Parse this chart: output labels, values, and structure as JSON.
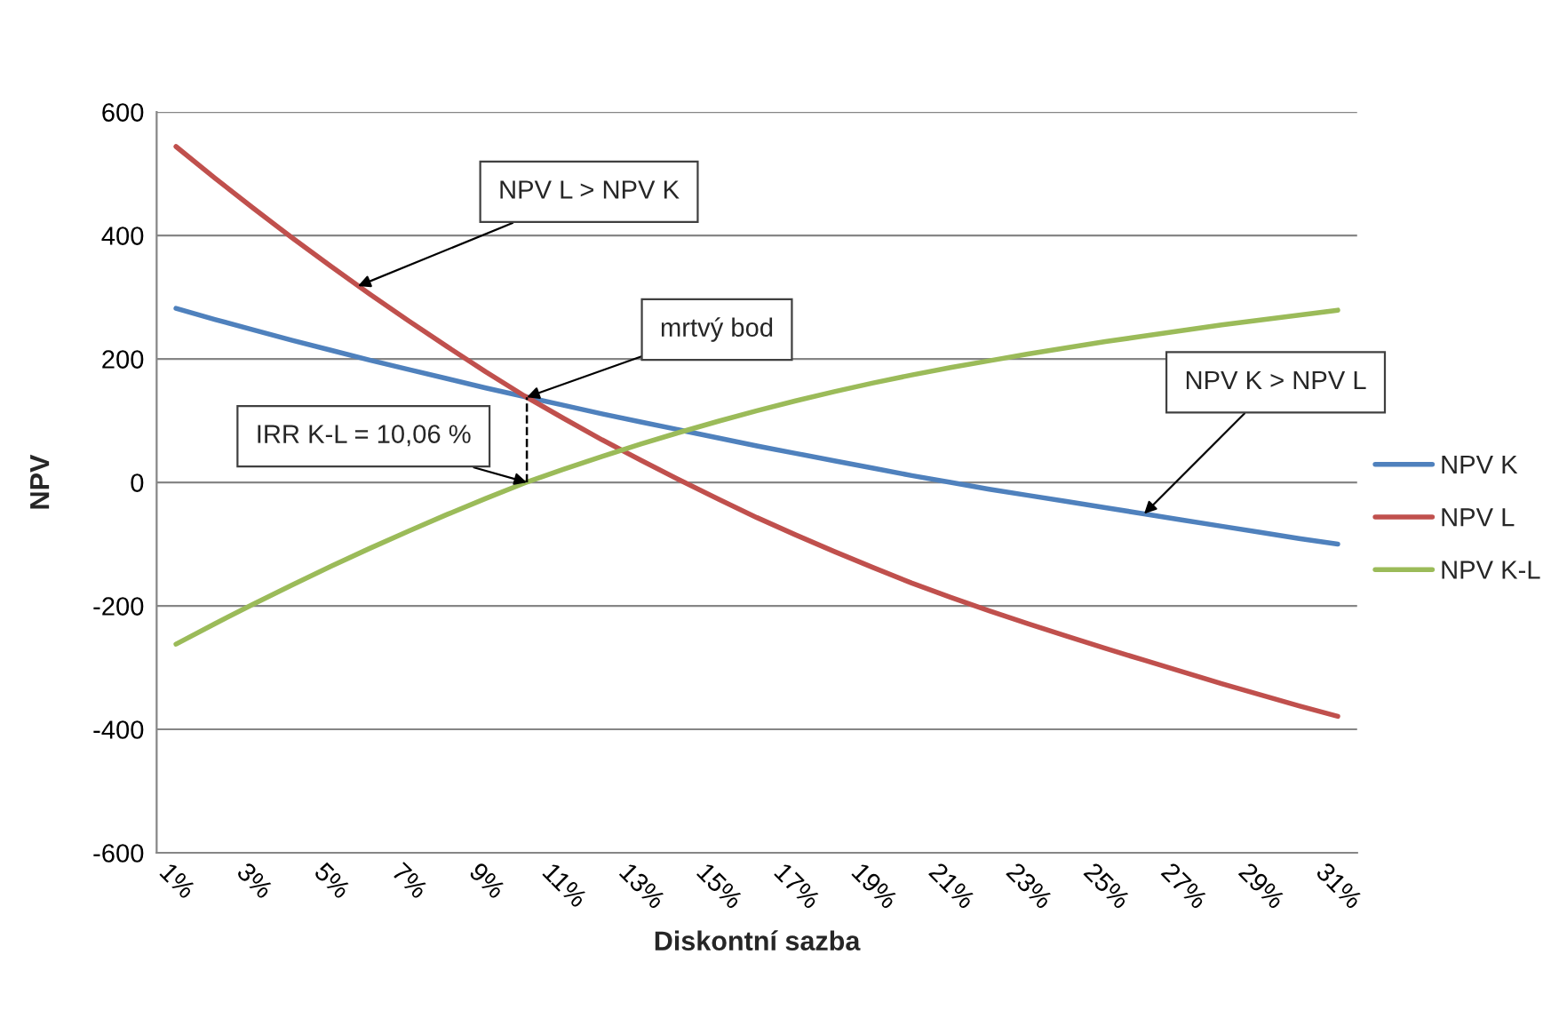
{
  "chart_data": {
    "type": "line",
    "xlabel": "Diskontní sazba",
    "ylabel": "NPV",
    "x": [
      1,
      2,
      3,
      4,
      5,
      6,
      7,
      8,
      9,
      10,
      11,
      12,
      13,
      14,
      15,
      16,
      17,
      18,
      19,
      20,
      21,
      22,
      23,
      24,
      25,
      26,
      27,
      28,
      29,
      30,
      31
    ],
    "xlim": [
      0.5,
      31.5
    ],
    "xticks": [
      {
        "value": 1,
        "label": "1%"
      },
      {
        "value": 3,
        "label": "3%"
      },
      {
        "value": 5,
        "label": "5%"
      },
      {
        "value": 7,
        "label": "7%"
      },
      {
        "value": 9,
        "label": "9%"
      },
      {
        "value": 11,
        "label": "11%"
      },
      {
        "value": 13,
        "label": "13%"
      },
      {
        "value": 15,
        "label": "15%"
      },
      {
        "value": 17,
        "label": "17%"
      },
      {
        "value": 19,
        "label": "19%"
      },
      {
        "value": 21,
        "label": "21%"
      },
      {
        "value": 23,
        "label": "23%"
      },
      {
        "value": 25,
        "label": "25%"
      },
      {
        "value": 27,
        "label": "27%"
      },
      {
        "value": 29,
        "label": "29%"
      },
      {
        "value": 31,
        "label": "31%"
      }
    ],
    "ylim": [
      -600,
      600
    ],
    "yticks": [
      -600,
      -400,
      -200,
      0,
      200,
      400,
      600
    ],
    "grid": "y",
    "legend": "right",
    "series": [
      {
        "name": "NPV K",
        "color": "#4f81bd",
        "values": [
          282,
          264,
          247,
          230,
          214,
          198,
          183,
          168,
          153,
          139,
          125,
          111,
          98,
          85,
          72,
          59,
          47,
          35,
          23,
          11,
          0,
          -11,
          -21,
          -31,
          -41,
          -51,
          -61,
          -71,
          -81,
          -91,
          -100
        ]
      },
      {
        "name": "NPV L",
        "color": "#c0504d",
        "values": [
          544,
          493,
          444,
          396,
          350,
          305,
          262,
          220,
          179,
          140,
          104,
          69,
          36,
          4,
          -27,
          -57,
          -85,
          -112,
          -138,
          -163,
          -186,
          -208,
          -229,
          -249,
          -269,
          -288,
          -307,
          -326,
          -344,
          -362,
          -379
        ]
      },
      {
        "name": "NPV K-L",
        "color": "#9bbb59",
        "values": [
          -262,
          -229,
          -197,
          -166,
          -136,
          -107,
          -79,
          -52,
          -26,
          -1,
          21,
          42,
          62,
          81,
          99,
          116,
          132,
          147,
          161,
          174,
          186,
          197,
          208,
          218,
          228,
          237,
          246,
          255,
          263,
          271,
          279
        ]
      },
      {
        "color": "#000000",
        "x": [
          10.06,
          10.06
        ],
        "values": [
          0,
          138
        ],
        "line_style": "dashed"
      }
    ],
    "annotations": [
      {
        "text": "NPV L > NPV K",
        "x": 5.7,
        "y": 318
      },
      {
        "text": "mrtvý bod",
        "x": 10.06,
        "y": 138
      },
      {
        "text": "IRR K-L = 10,06 %",
        "x": 10.06,
        "y": 0
      },
      {
        "text": "NPV K > NPV L",
        "x": 26,
        "y": -51
      }
    ]
  }
}
